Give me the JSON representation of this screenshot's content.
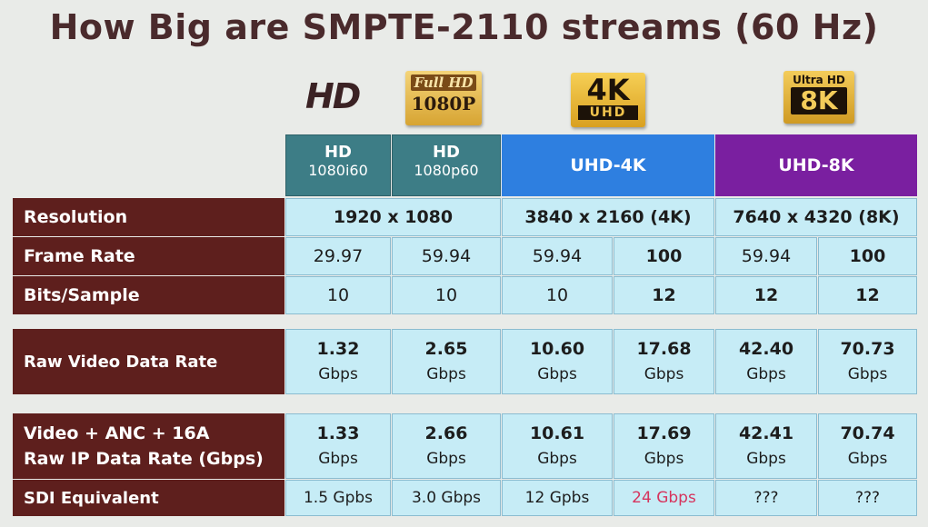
{
  "title": "How Big are SMPTE-2110 streams (60 Hz)",
  "logos": {
    "hd": "HD",
    "full_hd_top": "Full HD",
    "full_hd_bottom": "1080P",
    "k4_top": "4K",
    "k4_bottom": "UHD",
    "k8_top": "Ultra HD",
    "k8_bottom": "8K"
  },
  "headers": {
    "hd1_l1": "HD",
    "hd1_l2": "1080i60",
    "hd2_l1": "HD",
    "hd2_l2": "1080p60",
    "uhd4k": "UHD-4K",
    "uhd8k": "UHD-8K"
  },
  "colors": {
    "label_bg": "#5e1f1d",
    "cell_bg": "#c6ecf6",
    "teal": "#3d7d86",
    "blue": "#2e7fe0",
    "purple": "#7a1fa0",
    "highlight": "#d6345d"
  },
  "rows": {
    "resolution": {
      "label": "Resolution",
      "hd": "1920 x 1080",
      "k4": "3840 x 2160 (4K)",
      "k8": "7640 x 4320  (8K)"
    },
    "frame_rate": {
      "label": "Frame Rate",
      "values": [
        "29.97",
        "59.94",
        "59.94",
        "100",
        "59.94",
        "100"
      ]
    },
    "bits_sample": {
      "label": "Bits/Sample",
      "values": [
        "10",
        "10",
        "10",
        "12",
        "12",
        "12"
      ]
    },
    "raw_video": {
      "label": "Raw Video Data Rate",
      "values": [
        "1.32",
        "2.65",
        "10.60",
        "17.68",
        "42.40",
        "70.73"
      ],
      "unit": "Gbps"
    },
    "raw_ip": {
      "label_l1": "Video + ANC + 16A",
      "label_l2": "Raw IP Data Rate (Gbps)",
      "values": [
        "1.33",
        "2.66",
        "10.61",
        "17.69",
        "42.41",
        "70.74"
      ],
      "unit": "Gbps"
    },
    "sdi": {
      "label": "SDI Equivalent",
      "values": [
        "1.5 Gpbs",
        "3.0 Gbps",
        "12 Gpbs",
        "24 Gbps",
        "???",
        "???"
      ]
    }
  }
}
